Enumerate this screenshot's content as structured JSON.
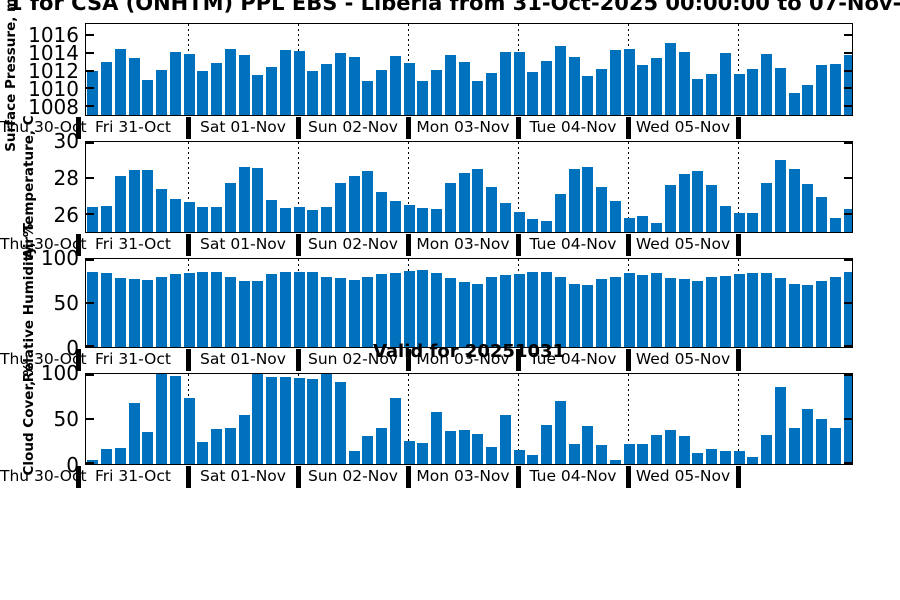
{
  "title": "1 for CSA (ONHTM) PPL EBS  - Liberia from 31-Oct-2025 00:00:00 to 07-Nov-",
  "annotations": {
    "valid_label": "Valid for 20251031"
  },
  "colors": {
    "bar": "#0072BD",
    "axis": "#000000",
    "text": "#000000",
    "background": "#FFFFFF"
  },
  "x_axis": {
    "start_label": "Thu 30-Oct",
    "day_labels": [
      "Fri 31-Oct",
      "Sat 01-Nov",
      "Sun 02-Nov",
      "Mon 03-Nov",
      "Tue 04-Nov",
      "Wed 05-Nov"
    ],
    "step_hours": 3,
    "first_bar_time": "31-Oct 03:00",
    "last_bar_time": "07-Nov 00:00",
    "grid": "dotted vertical lines at day boundaries"
  },
  "chart_data": [
    {
      "type": "bar",
      "ylabel": "Surface Pressure, mb",
      "ylim": [
        1007,
        1017.3
      ],
      "yticks": [
        1008,
        1010,
        1012,
        1014,
        1016
      ],
      "values": [
        1012.0,
        1013.0,
        1014.5,
        1013.5,
        1011.0,
        1012.1,
        1014.1,
        1013.9,
        1012.0,
        1012.9,
        1014.5,
        1013.8,
        1011.5,
        1012.4,
        1014.4,
        1014.2,
        1012.0,
        1012.8,
        1014.0,
        1013.6,
        1010.9,
        1012.1,
        1013.7,
        1012.9,
        1010.9,
        1012.1,
        1013.8,
        1013.0,
        1010.9,
        1011.7,
        1014.1,
        1014.1,
        1011.9,
        1013.1,
        1014.8,
        1013.6,
        1011.4,
        1012.2,
        1014.4,
        1014.5,
        1012.7,
        1013.4,
        1015.2,
        1014.1,
        1011.1,
        1011.6,
        1014.0,
        1011.6,
        1012.2,
        1013.9,
        1012.3,
        1009.5,
        1010.4,
        1012.7,
        1012.8,
        1013.8
      ]
    },
    {
      "type": "bar",
      "ylabel": "Air Temperature, C",
      "ylim": [
        25.0,
        30.0
      ],
      "yticks": [
        26,
        28,
        30
      ],
      "values": [
        26.4,
        26.45,
        28.1,
        28.45,
        28.45,
        27.4,
        26.85,
        26.65,
        26.4,
        26.4,
        27.7,
        28.6,
        28.55,
        26.8,
        26.35,
        26.4,
        26.2,
        26.4,
        27.7,
        28.1,
        28.4,
        27.2,
        26.7,
        26.5,
        26.35,
        26.3,
        27.7,
        28.3,
        28.5,
        27.5,
        26.6,
        26.1,
        25.7,
        25.6,
        27.1,
        28.5,
        28.6,
        27.5,
        26.7,
        25.8,
        25.9,
        25.5,
        27.6,
        28.2,
        28.4,
        27.6,
        26.45,
        26.05,
        26.05,
        27.75,
        29.0,
        28.5,
        27.65,
        26.95,
        25.8,
        26.3
      ]
    },
    {
      "type": "bar",
      "ylabel": "Relative Humidity, %",
      "ylim": [
        0,
        100
      ],
      "yticks": [
        0,
        50,
        100
      ],
      "values": [
        85,
        84,
        78,
        77,
        76,
        80,
        83,
        84,
        85,
        85,
        79,
        75,
        75,
        83,
        85,
        85,
        85,
        80,
        78,
        76,
        80,
        83,
        84,
        86,
        87,
        84,
        78,
        74,
        72,
        79,
        82,
        83,
        85,
        85,
        79,
        72,
        71,
        77,
        80,
        84,
        82,
        84,
        78,
        77,
        75,
        79,
        81,
        83,
        84,
        84,
        78,
        72,
        70,
        75,
        79,
        85
      ]
    },
    {
      "type": "bar",
      "ylabel": "Cloud Cover, %",
      "ylim": [
        0,
        100
      ],
      "yticks": [
        0,
        50,
        100
      ],
      "values": [
        4,
        17,
        18,
        68,
        36,
        100,
        98,
        73,
        24,
        39,
        40,
        54,
        100,
        97,
        97,
        96,
        95,
        100,
        91,
        14,
        31,
        40,
        73,
        26,
        23,
        58,
        37,
        38,
        33,
        19,
        55,
        16,
        10,
        43,
        70,
        22,
        42,
        21,
        4,
        22,
        22,
        32,
        38,
        31,
        12,
        17,
        14,
        15,
        8,
        32,
        86,
        40,
        61,
        50,
        40,
        99
      ]
    }
  ]
}
